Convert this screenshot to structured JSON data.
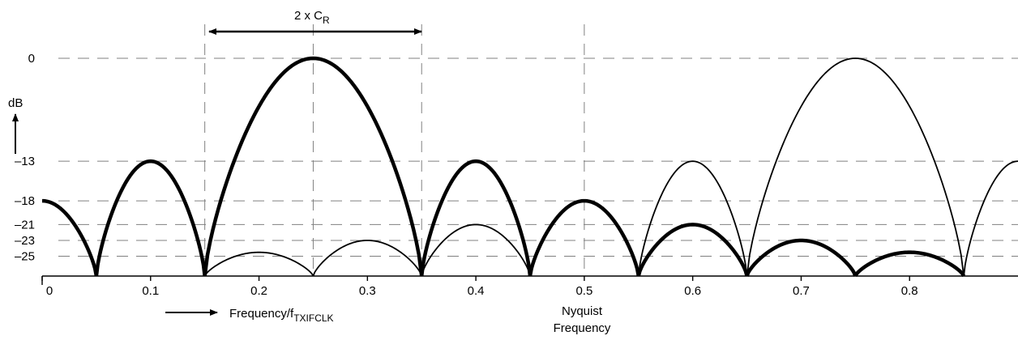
{
  "chart_data": {
    "type": "line",
    "ylabel": "dB",
    "xlabel_main": "Frequency/f",
    "xlabel_sub": "TXIFCLK",
    "xlim": [
      0,
      0.9
    ],
    "ylim": [
      -27.5,
      0
    ],
    "x_ticks": [
      0,
      0.1,
      0.2,
      0.3,
      0.4,
      0.5,
      0.6,
      0.7,
      0.8
    ],
    "x_tick_labels": [
      "0",
      "0.1",
      "0.2",
      "0.3",
      "0.4",
      "0.5",
      "0.6",
      "0.7",
      "0.8"
    ],
    "y_ticks": [
      0,
      -13,
      -18,
      -21,
      -23,
      -25
    ],
    "y_tick_labels": [
      "0",
      "–13",
      "–18",
      "–21",
      "–23",
      "–25"
    ],
    "bandwidth_label_main": "2 x C",
    "bandwidth_label_sub": "R",
    "bandwidth_range": [
      0.15,
      0.35
    ],
    "nyquist_label": [
      "Nyquist",
      "Frequency"
    ],
    "vertical_guides_x": [
      0.15,
      0.25,
      0.35,
      0.5
    ],
    "series": [
      {
        "style": "thick",
        "lobes": [
          {
            "x0": -0.05,
            "x1": 0.05,
            "peak": -18
          },
          {
            "x0": 0.05,
            "x1": 0.15,
            "peak": -13
          },
          {
            "x0": 0.15,
            "x1": 0.35,
            "peak": 0
          },
          {
            "x0": 0.35,
            "x1": 0.45,
            "peak": -13
          },
          {
            "x0": 0.45,
            "x1": 0.55,
            "peak": -18
          },
          {
            "x0": 0.55,
            "x1": 0.65,
            "peak": -21
          },
          {
            "x0": 0.65,
            "x1": 0.75,
            "peak": -23
          },
          {
            "x0": 0.75,
            "x1": 0.85,
            "peak": -24.5
          }
        ]
      },
      {
        "style": "thin",
        "lobes": [
          {
            "x0": 0.15,
            "x1": 0.25,
            "peak": -24.5
          },
          {
            "x0": 0.25,
            "x1": 0.35,
            "peak": -23
          },
          {
            "x0": 0.35,
            "x1": 0.45,
            "peak": -21
          },
          {
            "x0": 0.55,
            "x1": 0.65,
            "peak": -13
          },
          {
            "x0": 0.65,
            "x1": 0.85,
            "peak": 0
          },
          {
            "x0": 0.85,
            "x1": 0.95,
            "peak": -13
          }
        ]
      }
    ]
  }
}
